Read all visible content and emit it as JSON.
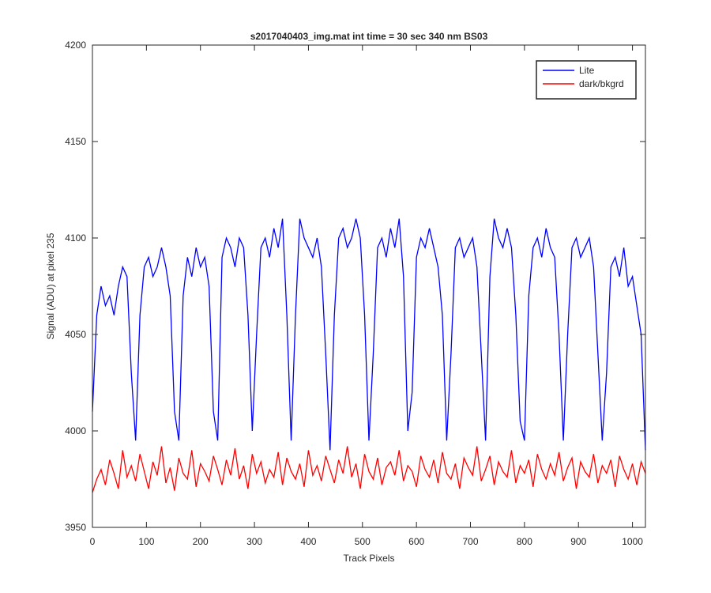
{
  "chart_data": {
    "type": "line",
    "title": "s2017040403_img.mat int time = 30 sec  340 nm BS03",
    "xlabel": "Track Pixels",
    "ylabel": "Signal (ADU) at pixel 235",
    "x": [
      0,
      8,
      16,
      24,
      32,
      40,
      48,
      56,
      64,
      72,
      80,
      88,
      96,
      104,
      112,
      120,
      128,
      136,
      144,
      152,
      160,
      168,
      176,
      184,
      192,
      200,
      208,
      216,
      224,
      232,
      240,
      248,
      256,
      264,
      272,
      280,
      288,
      296,
      304,
      312,
      320,
      328,
      336,
      344,
      352,
      360,
      368,
      376,
      384,
      392,
      400,
      408,
      416,
      424,
      432,
      440,
      448,
      456,
      464,
      472,
      480,
      488,
      496,
      504,
      512,
      520,
      528,
      536,
      544,
      552,
      560,
      568,
      576,
      584,
      592,
      600,
      608,
      616,
      624,
      632,
      640,
      648,
      656,
      664,
      672,
      680,
      688,
      696,
      704,
      712,
      720,
      728,
      736,
      744,
      752,
      760,
      768,
      776,
      784,
      792,
      800,
      808,
      816,
      824,
      832,
      840,
      848,
      856,
      864,
      872,
      880,
      888,
      896,
      904,
      912,
      920,
      928,
      936,
      944,
      952,
      960,
      968,
      976,
      984,
      992,
      1000,
      1008,
      1016,
      1024
    ],
    "series": [
      {
        "name": "Lite",
        "color": "#0000ff",
        "values": [
          4010,
          4060,
          4075,
          4065,
          4070,
          4060,
          4075,
          4085,
          4080,
          4030,
          3995,
          4060,
          4085,
          4090,
          4080,
          4085,
          4095,
          4085,
          4070,
          4010,
          3995,
          4070,
          4090,
          4080,
          4095,
          4085,
          4090,
          4075,
          4010,
          3995,
          4090,
          4100,
          4095,
          4085,
          4100,
          4095,
          4060,
          4000,
          4050,
          4095,
          4100,
          4090,
          4105,
          4095,
          4110,
          4060,
          3995,
          4060,
          4110,
          4100,
          4095,
          4090,
          4100,
          4085,
          4040,
          3990,
          4060,
          4100,
          4105,
          4095,
          4100,
          4110,
          4100,
          4060,
          3995,
          4040,
          4095,
          4100,
          4090,
          4105,
          4095,
          4110,
          4080,
          4000,
          4020,
          4090,
          4100,
          4095,
          4105,
          4095,
          4085,
          4060,
          3995,
          4040,
          4095,
          4100,
          4090,
          4095,
          4100,
          4085,
          4040,
          3995,
          4080,
          4110,
          4100,
          4095,
          4105,
          4095,
          4060,
          4005,
          3995,
          4070,
          4095,
          4100,
          4090,
          4105,
          4095,
          4090,
          4050,
          3995,
          4050,
          4095,
          4100,
          4090,
          4095,
          4100,
          4085,
          4040,
          3995,
          4030,
          4085,
          4090,
          4080,
          4095,
          4075,
          4080,
          4065,
          4050,
          3990
        ]
      },
      {
        "name": "dark/bkgrd",
        "color": "#ff0000",
        "values": [
          3968,
          3975,
          3980,
          3972,
          3985,
          3978,
          3970,
          3990,
          3976,
          3982,
          3974,
          3988,
          3979,
          3970,
          3984,
          3977,
          3992,
          3973,
          3981,
          3969,
          3986,
          3978,
          3975,
          3990,
          3971,
          3983,
          3979,
          3974,
          3987,
          3980,
          3972,
          3985,
          3977,
          3991,
          3975,
          3982,
          3970,
          3988,
          3978,
          3984,
          3973,
          3980,
          3976,
          3989,
          3972,
          3986,
          3979,
          3975,
          3983,
          3971,
          3990,
          3977,
          3982,
          3974,
          3987,
          3980,
          3973,
          3985,
          3978,
          3992,
          3976,
          3983,
          3970,
          3988,
          3979,
          3975,
          3986,
          3972,
          3981,
          3984,
          3977,
          3990,
          3974,
          3982,
          3979,
          3971,
          3987,
          3980,
          3976,
          3985,
          3973,
          3989,
          3978,
          3975,
          3983,
          3970,
          3986,
          3981,
          3977,
          3992,
          3974,
          3980,
          3987,
          3972,
          3984,
          3979,
          3976,
          3990,
          3973,
          3982,
          3978,
          3985,
          3971,
          3988,
          3980,
          3975,
          3983,
          3977,
          3989,
          3974,
          3981,
          3986,
          3970,
          3984,
          3979,
          3976,
          3988,
          3973,
          3982,
          3978,
          3985,
          3971,
          3987,
          3980,
          3975,
          3983,
          3972,
          3984,
          3978
        ]
      }
    ],
    "xlim": [
      0,
      1024
    ],
    "xticks": [
      0,
      100,
      200,
      300,
      400,
      500,
      600,
      700,
      800,
      900,
      1000
    ],
    "ylim": [
      3950,
      4200
    ],
    "yticks": [
      3950,
      4000,
      4050,
      4100,
      4150,
      4200
    ],
    "legend": "northeast"
  }
}
